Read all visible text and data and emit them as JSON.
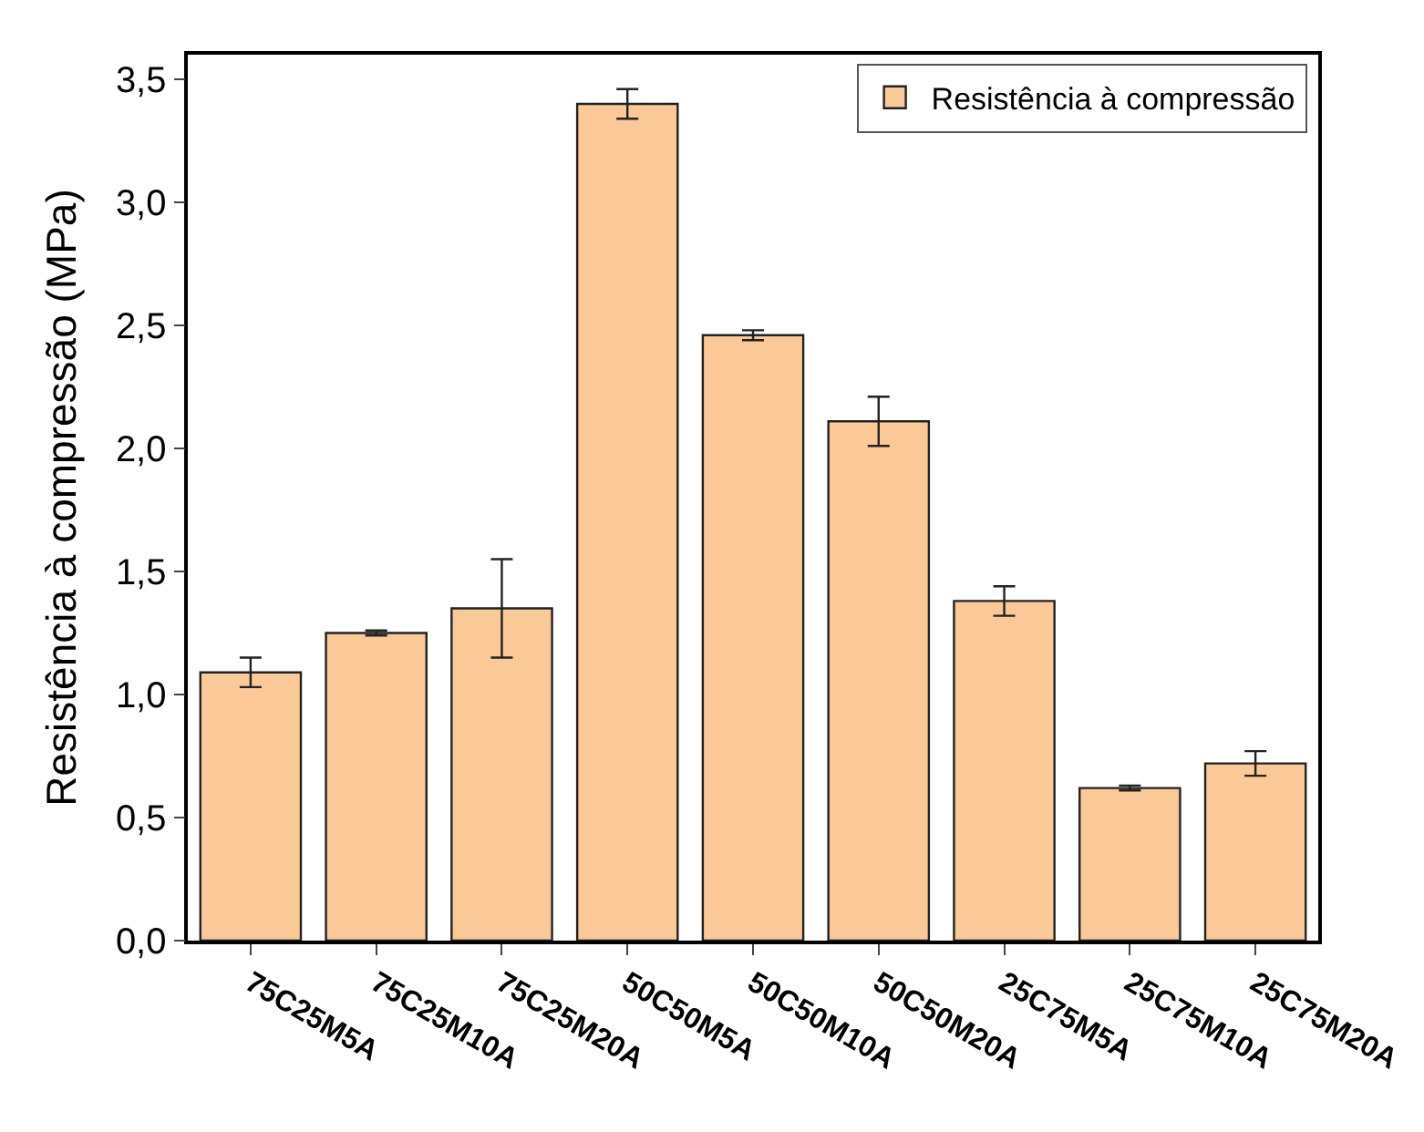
{
  "chart_data": {
    "type": "bar",
    "ylabel": "Resistência à compressão (MPa)",
    "categories": [
      "75C25M5A",
      "75C25M10A",
      "75C25M20A",
      "50C50M5A",
      "50C50M10A",
      "50C50M20A",
      "25C75M5A",
      "25C75M10A",
      "25C75M20A"
    ],
    "series": [
      {
        "name": "Resistência à compressão",
        "color": "#fbc898",
        "values": [
          1.09,
          1.25,
          1.35,
          3.4,
          2.46,
          2.11,
          1.38,
          0.62,
          0.72
        ],
        "errors": [
          0.06,
          0.01,
          0.2,
          0.06,
          0.02,
          0.1,
          0.06,
          0.01,
          0.05
        ]
      }
    ],
    "ylim": [
      0,
      3.6
    ],
    "yticks": [
      {
        "value": 0,
        "label": "0,0"
      },
      {
        "value": 0.5,
        "label": "0,5"
      },
      {
        "value": 1,
        "label": "1,0"
      },
      {
        "value": 1.5,
        "label": "1,5"
      },
      {
        "value": 2,
        "label": "2,0"
      },
      {
        "value": 2.5,
        "label": "2,5"
      },
      {
        "value": 3,
        "label": "3,0"
      },
      {
        "value": 3.5,
        "label": "3,5"
      }
    ],
    "legend": "top right"
  }
}
